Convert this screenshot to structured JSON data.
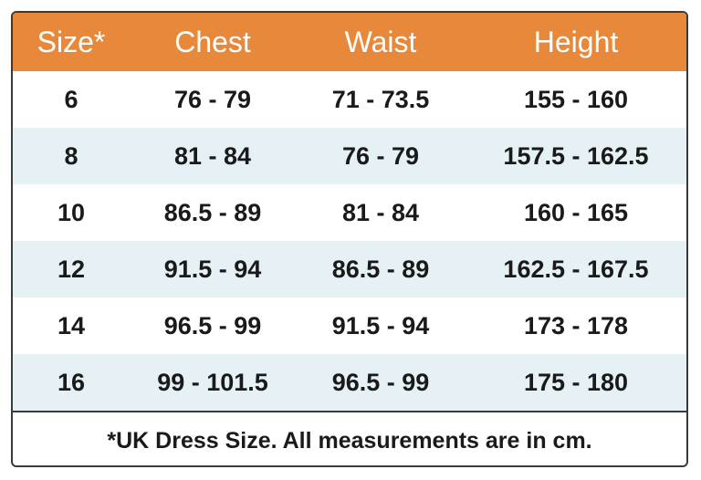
{
  "header": {
    "size": "Size*",
    "chest": "Chest",
    "waist": "Waist",
    "height": "Height"
  },
  "rows": [
    {
      "size": "6",
      "chest": "76 - 79",
      "waist": "71 - 73.5",
      "height": "155 - 160"
    },
    {
      "size": "8",
      "chest": "81 - 84",
      "waist": "76 - 79",
      "height": "157.5 - 162.5"
    },
    {
      "size": "10",
      "chest": "86.5 - 89",
      "waist": "81 - 84",
      "height": "160 - 165"
    },
    {
      "size": "12",
      "chest": "91.5 - 94",
      "waist": "86.5 - 89",
      "height": "162.5 - 167.5"
    },
    {
      "size": "14",
      "chest": "96.5 - 99",
      "waist": "91.5 - 94",
      "height": "173 - 178"
    },
    {
      "size": "16",
      "chest": "99 - 101.5",
      "waist": "96.5 - 99",
      "height": "175 - 180"
    }
  ],
  "footnote": "*UK Dress Size. All measurements are in cm.",
  "colors": {
    "header_bg": "#e8883a",
    "header_text": "#ffffff",
    "alt_row_bg": "#e6f1f6",
    "border": "#3a3a3a"
  }
}
